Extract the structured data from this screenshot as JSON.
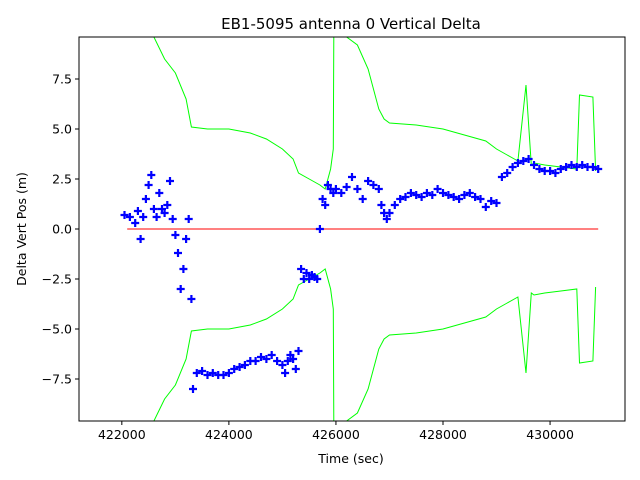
{
  "chart_data": {
    "type": "scatter",
    "title": "EB1-5095 antenna 0 Vertical Delta",
    "xlabel": "Time (sec)",
    "ylabel": "Delta Vert Pos (m)",
    "xlim": [
      421200,
      431400
    ],
    "ylim": [
      -9.6,
      9.6
    ],
    "x_ticks": [
      422000,
      424000,
      426000,
      428000,
      430000
    ],
    "x_tick_labels": [
      "422000",
      "424000",
      "426000",
      "428000",
      "430000"
    ],
    "y_ticks": [
      -7.5,
      -5.0,
      -2.5,
      0.0,
      2.5,
      5.0,
      7.5
    ],
    "y_tick_labels": [
      "−7.5",
      "−5.0",
      "−2.5",
      "0.0",
      "2.5",
      "5.0",
      "7.5"
    ],
    "grid": false,
    "legend": "none",
    "colors": {
      "points": "#0000ff",
      "bounds": "#00ff00",
      "reference": "#ff0000"
    },
    "series": [
      {
        "type": "scatter",
        "marker": "plus",
        "color": "#0000ff",
        "x": [
          422050,
          422150,
          422250,
          422300,
          422350,
          422400,
          422450,
          422500,
          422550,
          422600,
          422650,
          422700,
          422750,
          422800,
          422850,
          422900,
          422950,
          423000,
          423050,
          423100,
          423150,
          423200,
          423250,
          423300,
          423330,
          423400,
          423500,
          423600,
          423700,
          423800,
          423900,
          424000,
          424100,
          424200,
          424300,
          424400,
          424500,
          424600,
          424700,
          424800,
          424900,
          425000,
          425050,
          425100,
          425150,
          425200,
          425250,
          425300,
          425350,
          425400,
          425450,
          425500,
          425550,
          425600,
          425650,
          425700,
          425750,
          425800,
          425850,
          425900,
          425950,
          426000,
          426100,
          426200,
          426300,
          426400,
          426500,
          426600,
          426700,
          426800,
          426850,
          426900,
          426950,
          427000,
          427100,
          427200,
          427300,
          427400,
          427500,
          427600,
          427700,
          427800,
          427900,
          428000,
          428100,
          428200,
          428300,
          428400,
          428500,
          428600,
          428700,
          428800,
          428900,
          429000,
          429100,
          429200,
          429300,
          429400,
          429500,
          429600,
          429700,
          429800,
          429900,
          430000,
          430100,
          430200,
          430300,
          430400,
          430500,
          430600,
          430700,
          430800,
          430900
        ],
        "y": [
          0.7,
          0.6,
          0.3,
          0.9,
          -0.5,
          0.6,
          1.5,
          2.2,
          2.7,
          1.0,
          0.6,
          1.8,
          1.0,
          0.8,
          1.2,
          2.4,
          0.5,
          -0.3,
          -1.2,
          -3.0,
          -2.0,
          -0.5,
          0.5,
          -3.5,
          -8.0,
          -7.2,
          -7.1,
          -7.3,
          -7.2,
          -7.3,
          -7.3,
          -7.2,
          -7.0,
          -6.9,
          -6.8,
          -6.6,
          -6.6,
          -6.4,
          -6.5,
          -6.3,
          -6.6,
          -6.8,
          -7.2,
          -6.6,
          -6.3,
          -6.5,
          -7.0,
          -6.1,
          -2.0,
          -2.5,
          -2.2,
          -2.5,
          -2.3,
          -2.4,
          -2.5,
          0.0,
          1.5,
          1.2,
          2.2,
          2.0,
          1.8,
          2.0,
          1.8,
          2.1,
          2.6,
          2.0,
          1.5,
          2.4,
          2.2,
          2.0,
          1.2,
          0.8,
          0.5,
          0.8,
          1.2,
          1.5,
          1.6,
          1.8,
          1.7,
          1.6,
          1.8,
          1.7,
          2.0,
          1.8,
          1.7,
          1.6,
          1.5,
          1.7,
          1.8,
          1.6,
          1.5,
          1.1,
          1.4,
          1.3,
          2.6,
          2.8,
          3.1,
          3.3,
          3.4,
          3.5,
          3.2,
          3.0,
          2.9,
          2.9,
          2.8,
          3.0,
          3.1,
          3.2,
          3.1,
          3.2,
          3.1,
          3.1,
          3.0
        ]
      },
      {
        "name": "",
        "type": "line",
        "color": "#00ff00",
        "x": [
          422600,
          422800,
          423000,
          423200,
          423300,
          423600,
          424000,
          424400,
          424700,
          425000,
          425200,
          425300,
          425500,
          425700,
          425800,
          425900,
          425950,
          425960,
          426100,
          426200,
          426400,
          426600,
          426800,
          426900,
          427000,
          427500,
          428000,
          428400,
          428800,
          429000,
          429200,
          429400,
          429550,
          429650,
          429700,
          429900,
          430200,
          430500,
          430550,
          430800,
          430850
        ],
        "y": [
          9.6,
          8.5,
          7.8,
          6.5,
          5.1,
          5.0,
          5.0,
          4.8,
          4.5,
          4.0,
          3.5,
          2.8,
          2.5,
          2.2,
          2.0,
          3.0,
          4.0,
          9.6,
          9.6,
          9.6,
          9.2,
          8.0,
          6.0,
          5.5,
          5.3,
          5.2,
          5.0,
          4.7,
          4.4,
          4.0,
          3.7,
          3.4,
          7.2,
          3.2,
          3.3,
          3.2,
          3.1,
          3.0,
          6.7,
          6.6,
          2.9
        ]
      },
      {
        "name": "",
        "type": "line",
        "color": "#00ff00",
        "x": [
          422600,
          422800,
          423000,
          423200,
          423300,
          423600,
          424000,
          424400,
          424700,
          425000,
          425200,
          425300,
          425500,
          425700,
          425800,
          425900,
          425950,
          425960,
          426100,
          426200,
          426400,
          426600,
          426800,
          426900,
          427000,
          427500,
          428000,
          428400,
          428800,
          429000,
          429200,
          429400,
          429550,
          429650,
          429700,
          429900,
          430200,
          430500,
          430550,
          430800,
          430850
        ],
        "y": [
          -9.6,
          -8.5,
          -7.8,
          -6.5,
          -5.1,
          -5.0,
          -5.0,
          -4.8,
          -4.5,
          -4.0,
          -3.5,
          -2.8,
          -2.5,
          -2.2,
          -2.0,
          -3.0,
          -4.0,
          -9.6,
          -9.6,
          -9.6,
          -9.2,
          -8.0,
          -6.0,
          -5.5,
          -5.3,
          -5.2,
          -5.0,
          -4.7,
          -4.4,
          -4.0,
          -3.7,
          -3.4,
          -7.2,
          -3.2,
          -3.3,
          -3.2,
          -3.1,
          -3.0,
          -6.7,
          -6.6,
          -2.9
        ]
      },
      {
        "name": "",
        "type": "line",
        "color": "#ff0000",
        "x": [
          422100,
          430900
        ],
        "y": [
          0.0,
          0.0
        ]
      }
    ]
  }
}
